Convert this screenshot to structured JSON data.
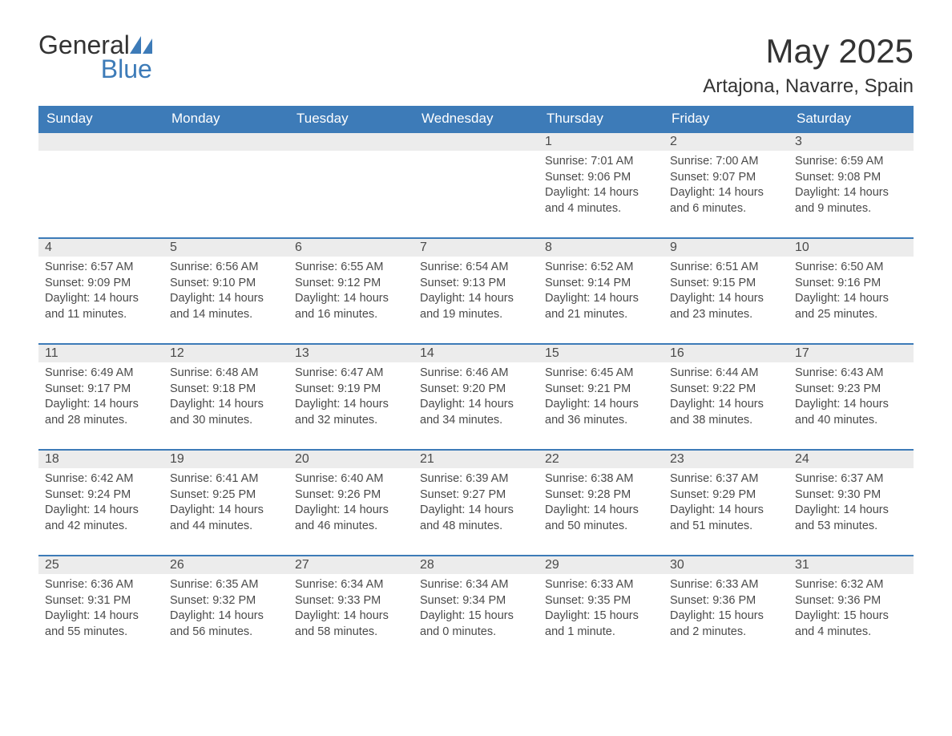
{
  "logo": {
    "text1": "General",
    "text2": "Blue",
    "icon_color": "#3d7bb8"
  },
  "title": "May 2025",
  "location": "Artajona, Navarre, Spain",
  "colors": {
    "header_bg": "#3d7bb8",
    "header_text": "#ffffff",
    "daybar_bg": "#ececec",
    "daybar_border": "#3d7bb8",
    "text": "#4a4a4a",
    "page_bg": "#ffffff"
  },
  "weekdays": [
    "Sunday",
    "Monday",
    "Tuesday",
    "Wednesday",
    "Thursday",
    "Friday",
    "Saturday"
  ],
  "weeks": [
    [
      null,
      null,
      null,
      null,
      {
        "n": "1",
        "sunrise": "7:01 AM",
        "sunset": "9:06 PM",
        "daylight": "14 hours and 4 minutes."
      },
      {
        "n": "2",
        "sunrise": "7:00 AM",
        "sunset": "9:07 PM",
        "daylight": "14 hours and 6 minutes."
      },
      {
        "n": "3",
        "sunrise": "6:59 AM",
        "sunset": "9:08 PM",
        "daylight": "14 hours and 9 minutes."
      }
    ],
    [
      {
        "n": "4",
        "sunrise": "6:57 AM",
        "sunset": "9:09 PM",
        "daylight": "14 hours and 11 minutes."
      },
      {
        "n": "5",
        "sunrise": "6:56 AM",
        "sunset": "9:10 PM",
        "daylight": "14 hours and 14 minutes."
      },
      {
        "n": "6",
        "sunrise": "6:55 AM",
        "sunset": "9:12 PM",
        "daylight": "14 hours and 16 minutes."
      },
      {
        "n": "7",
        "sunrise": "6:54 AM",
        "sunset": "9:13 PM",
        "daylight": "14 hours and 19 minutes."
      },
      {
        "n": "8",
        "sunrise": "6:52 AM",
        "sunset": "9:14 PM",
        "daylight": "14 hours and 21 minutes."
      },
      {
        "n": "9",
        "sunrise": "6:51 AM",
        "sunset": "9:15 PM",
        "daylight": "14 hours and 23 minutes."
      },
      {
        "n": "10",
        "sunrise": "6:50 AM",
        "sunset": "9:16 PM",
        "daylight": "14 hours and 25 minutes."
      }
    ],
    [
      {
        "n": "11",
        "sunrise": "6:49 AM",
        "sunset": "9:17 PM",
        "daylight": "14 hours and 28 minutes."
      },
      {
        "n": "12",
        "sunrise": "6:48 AM",
        "sunset": "9:18 PM",
        "daylight": "14 hours and 30 minutes."
      },
      {
        "n": "13",
        "sunrise": "6:47 AM",
        "sunset": "9:19 PM",
        "daylight": "14 hours and 32 minutes."
      },
      {
        "n": "14",
        "sunrise": "6:46 AM",
        "sunset": "9:20 PM",
        "daylight": "14 hours and 34 minutes."
      },
      {
        "n": "15",
        "sunrise": "6:45 AM",
        "sunset": "9:21 PM",
        "daylight": "14 hours and 36 minutes."
      },
      {
        "n": "16",
        "sunrise": "6:44 AM",
        "sunset": "9:22 PM",
        "daylight": "14 hours and 38 minutes."
      },
      {
        "n": "17",
        "sunrise": "6:43 AM",
        "sunset": "9:23 PM",
        "daylight": "14 hours and 40 minutes."
      }
    ],
    [
      {
        "n": "18",
        "sunrise": "6:42 AM",
        "sunset": "9:24 PM",
        "daylight": "14 hours and 42 minutes."
      },
      {
        "n": "19",
        "sunrise": "6:41 AM",
        "sunset": "9:25 PM",
        "daylight": "14 hours and 44 minutes."
      },
      {
        "n": "20",
        "sunrise": "6:40 AM",
        "sunset": "9:26 PM",
        "daylight": "14 hours and 46 minutes."
      },
      {
        "n": "21",
        "sunrise": "6:39 AM",
        "sunset": "9:27 PM",
        "daylight": "14 hours and 48 minutes."
      },
      {
        "n": "22",
        "sunrise": "6:38 AM",
        "sunset": "9:28 PM",
        "daylight": "14 hours and 50 minutes."
      },
      {
        "n": "23",
        "sunrise": "6:37 AM",
        "sunset": "9:29 PM",
        "daylight": "14 hours and 51 minutes."
      },
      {
        "n": "24",
        "sunrise": "6:37 AM",
        "sunset": "9:30 PM",
        "daylight": "14 hours and 53 minutes."
      }
    ],
    [
      {
        "n": "25",
        "sunrise": "6:36 AM",
        "sunset": "9:31 PM",
        "daylight": "14 hours and 55 minutes."
      },
      {
        "n": "26",
        "sunrise": "6:35 AM",
        "sunset": "9:32 PM",
        "daylight": "14 hours and 56 minutes."
      },
      {
        "n": "27",
        "sunrise": "6:34 AM",
        "sunset": "9:33 PM",
        "daylight": "14 hours and 58 minutes."
      },
      {
        "n": "28",
        "sunrise": "6:34 AM",
        "sunset": "9:34 PM",
        "daylight": "15 hours and 0 minutes."
      },
      {
        "n": "29",
        "sunrise": "6:33 AM",
        "sunset": "9:35 PM",
        "daylight": "15 hours and 1 minute."
      },
      {
        "n": "30",
        "sunrise": "6:33 AM",
        "sunset": "9:36 PM",
        "daylight": "15 hours and 2 minutes."
      },
      {
        "n": "31",
        "sunrise": "6:32 AM",
        "sunset": "9:36 PM",
        "daylight": "15 hours and 4 minutes."
      }
    ]
  ],
  "labels": {
    "sunrise": "Sunrise: ",
    "sunset": "Sunset: ",
    "daylight": "Daylight: "
  }
}
